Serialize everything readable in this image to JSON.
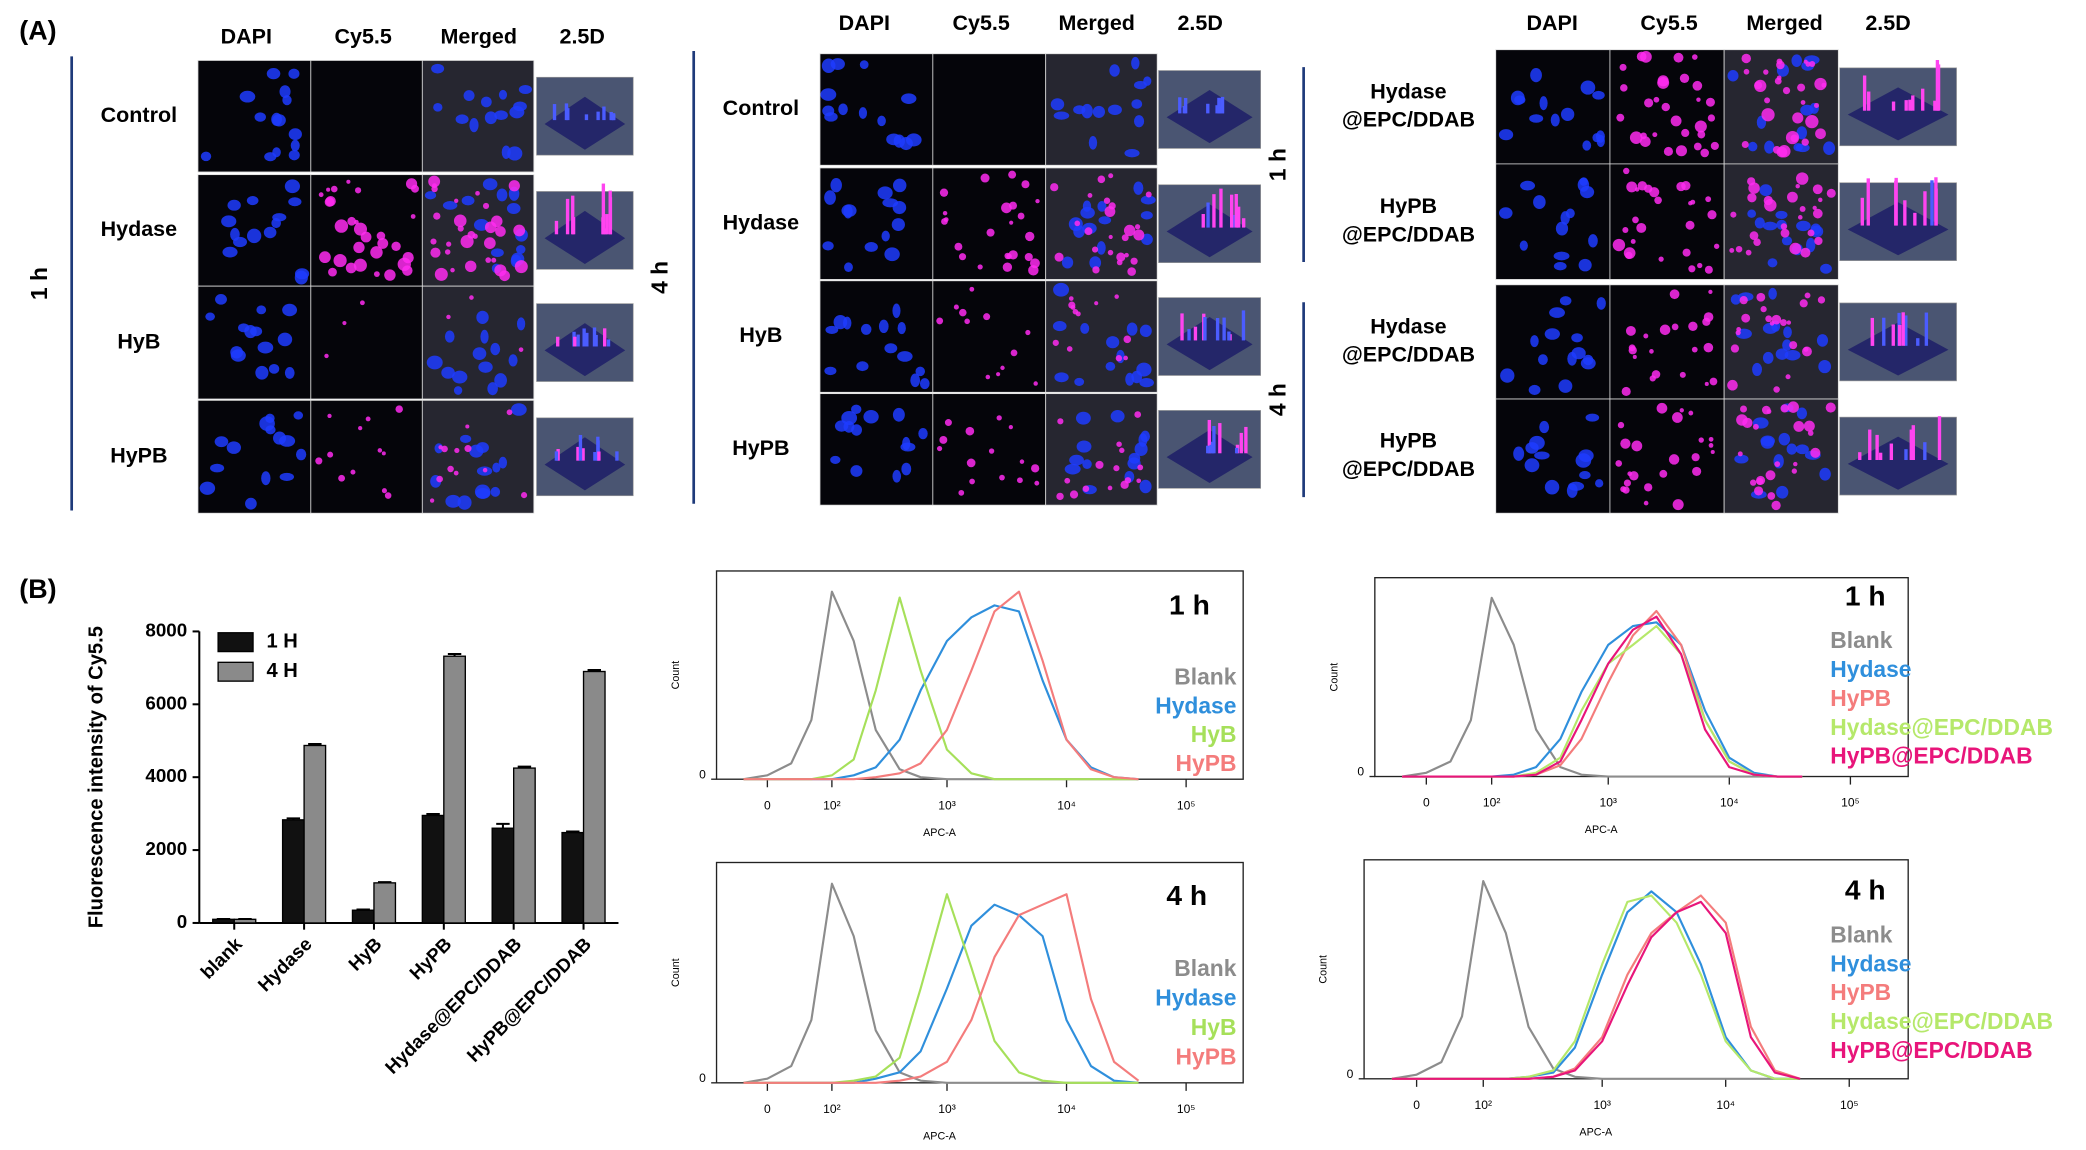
{
  "panel_labels": [
    "(A)",
    "(B)"
  ],
  "panel_a": {
    "groups": [
      {
        "columns": [
          "DAPI",
          "Cy5.5",
          "Merged",
          "2.5D"
        ],
        "sections": [
          {
            "time": "1 h",
            "rows": [
              [
                "Control"
              ],
              [
                "Hydase"
              ],
              [
                "HyB"
              ],
              [
                "HyPB"
              ]
            ]
          }
        ]
      },
      {
        "columns": [
          "DAPI",
          "Cy5.5",
          "Merged",
          "2.5D"
        ],
        "sections": [
          {
            "time": "4 h",
            "rows": [
              [
                "Control"
              ],
              [
                "Hydase"
              ],
              [
                "HyB"
              ],
              [
                "HyPB"
              ]
            ]
          }
        ]
      },
      {
        "columns": [
          "DAPI",
          "Cy5.5",
          "Merged",
          "2.5D"
        ],
        "sections": [
          {
            "time": "1 h",
            "rows": [
              [
                "Hydase",
                "@EPC/DDAB"
              ],
              [
                "HyPB",
                "@EPC/DDAB"
              ]
            ]
          },
          {
            "time": "4 h",
            "rows": [
              [
                "Hydase",
                "@EPC/DDAB"
              ],
              [
                "HyPB",
                "@EPC/DDAB"
              ]
            ]
          }
        ]
      }
    ]
  },
  "chart_data": [
    {
      "type": "bar",
      "ylabel": "Fluorescence intensity of Cy5.5",
      "categories": [
        "blank",
        "Hydase",
        "HyB",
        "HyPB",
        "Hydase@EPC/DDAB",
        "HyPB@EPC/DDAB"
      ],
      "series": [
        {
          "name": "1 H",
          "color": "#111111",
          "values": [
            100,
            2830,
            350,
            2950,
            2600,
            2480
          ],
          "errors": [
            10,
            40,
            20,
            40,
            120,
            30
          ]
        },
        {
          "name": "4 H",
          "color": "#8a8a8a",
          "values": [
            100,
            4870,
            1100,
            7320,
            4250,
            6900
          ],
          "errors": [
            10,
            40,
            20,
            60,
            40,
            40
          ]
        }
      ],
      "ylim": [
        0,
        8000
      ],
      "yticks": [
        0,
        2000,
        4000,
        6000,
        8000
      ],
      "legend": "upper left"
    },
    {
      "type": "line",
      "title": "1 h",
      "xlabel": "APC-A",
      "ylabel": "Count",
      "xscale": "biexponential",
      "x": [
        -30,
        0,
        30,
        60,
        100,
        160,
        250,
        400,
        600,
        1000,
        1600,
        2500,
        4000,
        6300,
        10000,
        16000,
        25000,
        40000
      ],
      "series": [
        {
          "name": "Blank",
          "color": "#8c8c8c",
          "values": [
            0,
            2,
            8,
            30,
            95,
            70,
            25,
            5,
            1,
            0,
            0,
            0,
            0,
            0,
            0,
            0,
            0,
            0
          ]
        },
        {
          "name": "Hydase",
          "color": "#2f8fdc",
          "values": [
            0,
            0,
            0,
            0,
            0,
            2,
            6,
            20,
            45,
            70,
            82,
            88,
            85,
            50,
            20,
            6,
            1,
            0
          ]
        },
        {
          "name": "HyB",
          "color": "#a6e05a",
          "values": [
            0,
            0,
            0,
            0,
            2,
            10,
            45,
            92,
            55,
            15,
            3,
            0,
            0,
            0,
            0,
            0,
            0,
            0
          ]
        },
        {
          "name": "HyPB",
          "color": "#f47c7c",
          "values": [
            0,
            0,
            0,
            0,
            0,
            0,
            1,
            3,
            8,
            25,
            55,
            85,
            95,
            60,
            20,
            5,
            1,
            0
          ]
        }
      ],
      "xlim": [
        -72,
        300000
      ],
      "ylim": [
        0,
        100
      ],
      "xticks": [
        0,
        {
          "value": 100,
          "label": "10²"
        },
        {
          "value": 1000,
          "label": "10³"
        },
        {
          "value": 10000,
          "label": "10⁴"
        },
        {
          "value": 100000,
          "label": "10⁵"
        }
      ],
      "yticks": [
        0
      ],
      "legend": "right"
    },
    {
      "type": "line",
      "title": "4 h",
      "xlabel": "APC-A",
      "ylabel": "Count",
      "xscale": "biexponential",
      "x": [
        -30,
        0,
        30,
        60,
        100,
        160,
        250,
        400,
        600,
        1000,
        1600,
        2500,
        4000,
        6300,
        10000,
        16000,
        25000,
        40000
      ],
      "series": [
        {
          "name": "Blank",
          "color": "#8c8c8c",
          "values": [
            0,
            2,
            8,
            30,
            95,
            70,
            25,
            5,
            1,
            0,
            0,
            0,
            0,
            0,
            0,
            0,
            0,
            0
          ]
        },
        {
          "name": "Hydase",
          "color": "#2f8fdc",
          "values": [
            0,
            0,
            0,
            0,
            0,
            0,
            2,
            5,
            15,
            45,
            75,
            85,
            80,
            70,
            30,
            8,
            1,
            0
          ]
        },
        {
          "name": "HyB",
          "color": "#a6e05a",
          "values": [
            0,
            0,
            0,
            0,
            0,
            1,
            3,
            12,
            45,
            90,
            55,
            20,
            5,
            1,
            0,
            0,
            0,
            0
          ]
        },
        {
          "name": "HyPB",
          "color": "#f47c7c",
          "values": [
            0,
            0,
            0,
            0,
            0,
            0,
            0,
            1,
            3,
            10,
            30,
            60,
            80,
            85,
            90,
            40,
            10,
            1
          ]
        }
      ],
      "xlim": [
        -72,
        300000
      ],
      "ylim": [
        0,
        100
      ],
      "xticks": [
        0,
        {
          "value": 100,
          "label": "10²"
        },
        {
          "value": 1000,
          "label": "10³"
        },
        {
          "value": 10000,
          "label": "10⁴"
        },
        {
          "value": 100000,
          "label": "10⁵"
        }
      ],
      "yticks": [
        0
      ],
      "legend": "right"
    },
    {
      "type": "line",
      "title": "1 h",
      "xlabel": "APC-A",
      "ylabel": "Count",
      "xscale": "biexponential",
      "x": [
        -30,
        0,
        30,
        60,
        100,
        160,
        250,
        400,
        600,
        1000,
        1600,
        2500,
        4000,
        6300,
        10000,
        16000,
        25000,
        40000
      ],
      "series": [
        {
          "name": "Blank",
          "color": "#8c8c8c",
          "values": [
            0,
            2,
            8,
            30,
            95,
            70,
            25,
            5,
            1,
            0,
            0,
            0,
            0,
            0,
            0,
            0,
            0,
            0
          ]
        },
        {
          "name": "Hydase",
          "color": "#2f8fdc",
          "values": [
            0,
            0,
            0,
            0,
            0,
            1,
            5,
            20,
            45,
            70,
            80,
            82,
            70,
            35,
            10,
            2,
            0,
            0
          ]
        },
        {
          "name": "HyPB",
          "color": "#f47c7c",
          "values": [
            0,
            0,
            0,
            0,
            0,
            0,
            1,
            6,
            20,
            50,
            75,
            88,
            70,
            30,
            8,
            1,
            0,
            0
          ]
        },
        {
          "name": "Hydase@EPC/DDAB",
          "color": "#b5e86a",
          "values": [
            0,
            0,
            0,
            0,
            0,
            0,
            2,
            10,
            35,
            60,
            70,
            80,
            65,
            30,
            8,
            1,
            0,
            0
          ]
        },
        {
          "name": "HyPB@EPC/DDAB",
          "color": "#e8157a",
          "values": [
            0,
            0,
            0,
            0,
            0,
            0,
            1,
            8,
            30,
            60,
            78,
            85,
            65,
            25,
            5,
            1,
            0,
            0
          ]
        }
      ],
      "xlim": [
        -72,
        300000
      ],
      "ylim": [
        0,
        100
      ],
      "xticks": [
        0,
        {
          "value": 100,
          "label": "10²"
        },
        {
          "value": 1000,
          "label": "10³"
        },
        {
          "value": 10000,
          "label": "10⁴"
        },
        {
          "value": 100000,
          "label": "10⁵"
        }
      ],
      "yticks": [
        0
      ],
      "legend": "right"
    },
    {
      "type": "line",
      "title": "4 h",
      "xlabel": "APC-A",
      "ylabel": "Count",
      "xscale": "biexponential",
      "x": [
        -30,
        0,
        30,
        60,
        100,
        160,
        250,
        400,
        600,
        1000,
        1600,
        2500,
        4000,
        6300,
        10000,
        16000,
        25000,
        40000
      ],
      "series": [
        {
          "name": "Blank",
          "color": "#8c8c8c",
          "values": [
            0,
            2,
            8,
            30,
            95,
            70,
            25,
            5,
            1,
            0,
            0,
            0,
            0,
            0,
            0,
            0,
            0,
            0
          ]
        },
        {
          "name": "Hydase",
          "color": "#2f8fdc",
          "values": [
            0,
            0,
            0,
            0,
            0,
            0,
            1,
            3,
            15,
            50,
            80,
            90,
            80,
            55,
            20,
            4,
            0,
            0
          ]
        },
        {
          "name": "HyPB",
          "color": "#f47c7c",
          "values": [
            0,
            0,
            0,
            0,
            0,
            0,
            0,
            1,
            5,
            20,
            50,
            70,
            80,
            88,
            75,
            25,
            4,
            0
          ]
        },
        {
          "name": "Hydase@EPC/DDAB",
          "color": "#b5e86a",
          "values": [
            0,
            0,
            0,
            0,
            0,
            0,
            1,
            4,
            18,
            55,
            85,
            88,
            75,
            50,
            18,
            4,
            0,
            0
          ]
        },
        {
          "name": "HyPB@EPC/DDAB",
          "color": "#e8157a",
          "values": [
            0,
            0,
            0,
            0,
            0,
            0,
            0,
            1,
            4,
            18,
            45,
            68,
            80,
            85,
            70,
            20,
            3,
            0
          ]
        }
      ],
      "xlim": [
        -72,
        300000
      ],
      "ylim": [
        0,
        100
      ],
      "xticks": [
        0,
        {
          "value": 100,
          "label": "10²"
        },
        {
          "value": 1000,
          "label": "10³"
        },
        {
          "value": 10000,
          "label": "10⁴"
        },
        {
          "value": 100000,
          "label": "10⁵"
        }
      ],
      "yticks": [
        0
      ],
      "legend": "right"
    }
  ]
}
